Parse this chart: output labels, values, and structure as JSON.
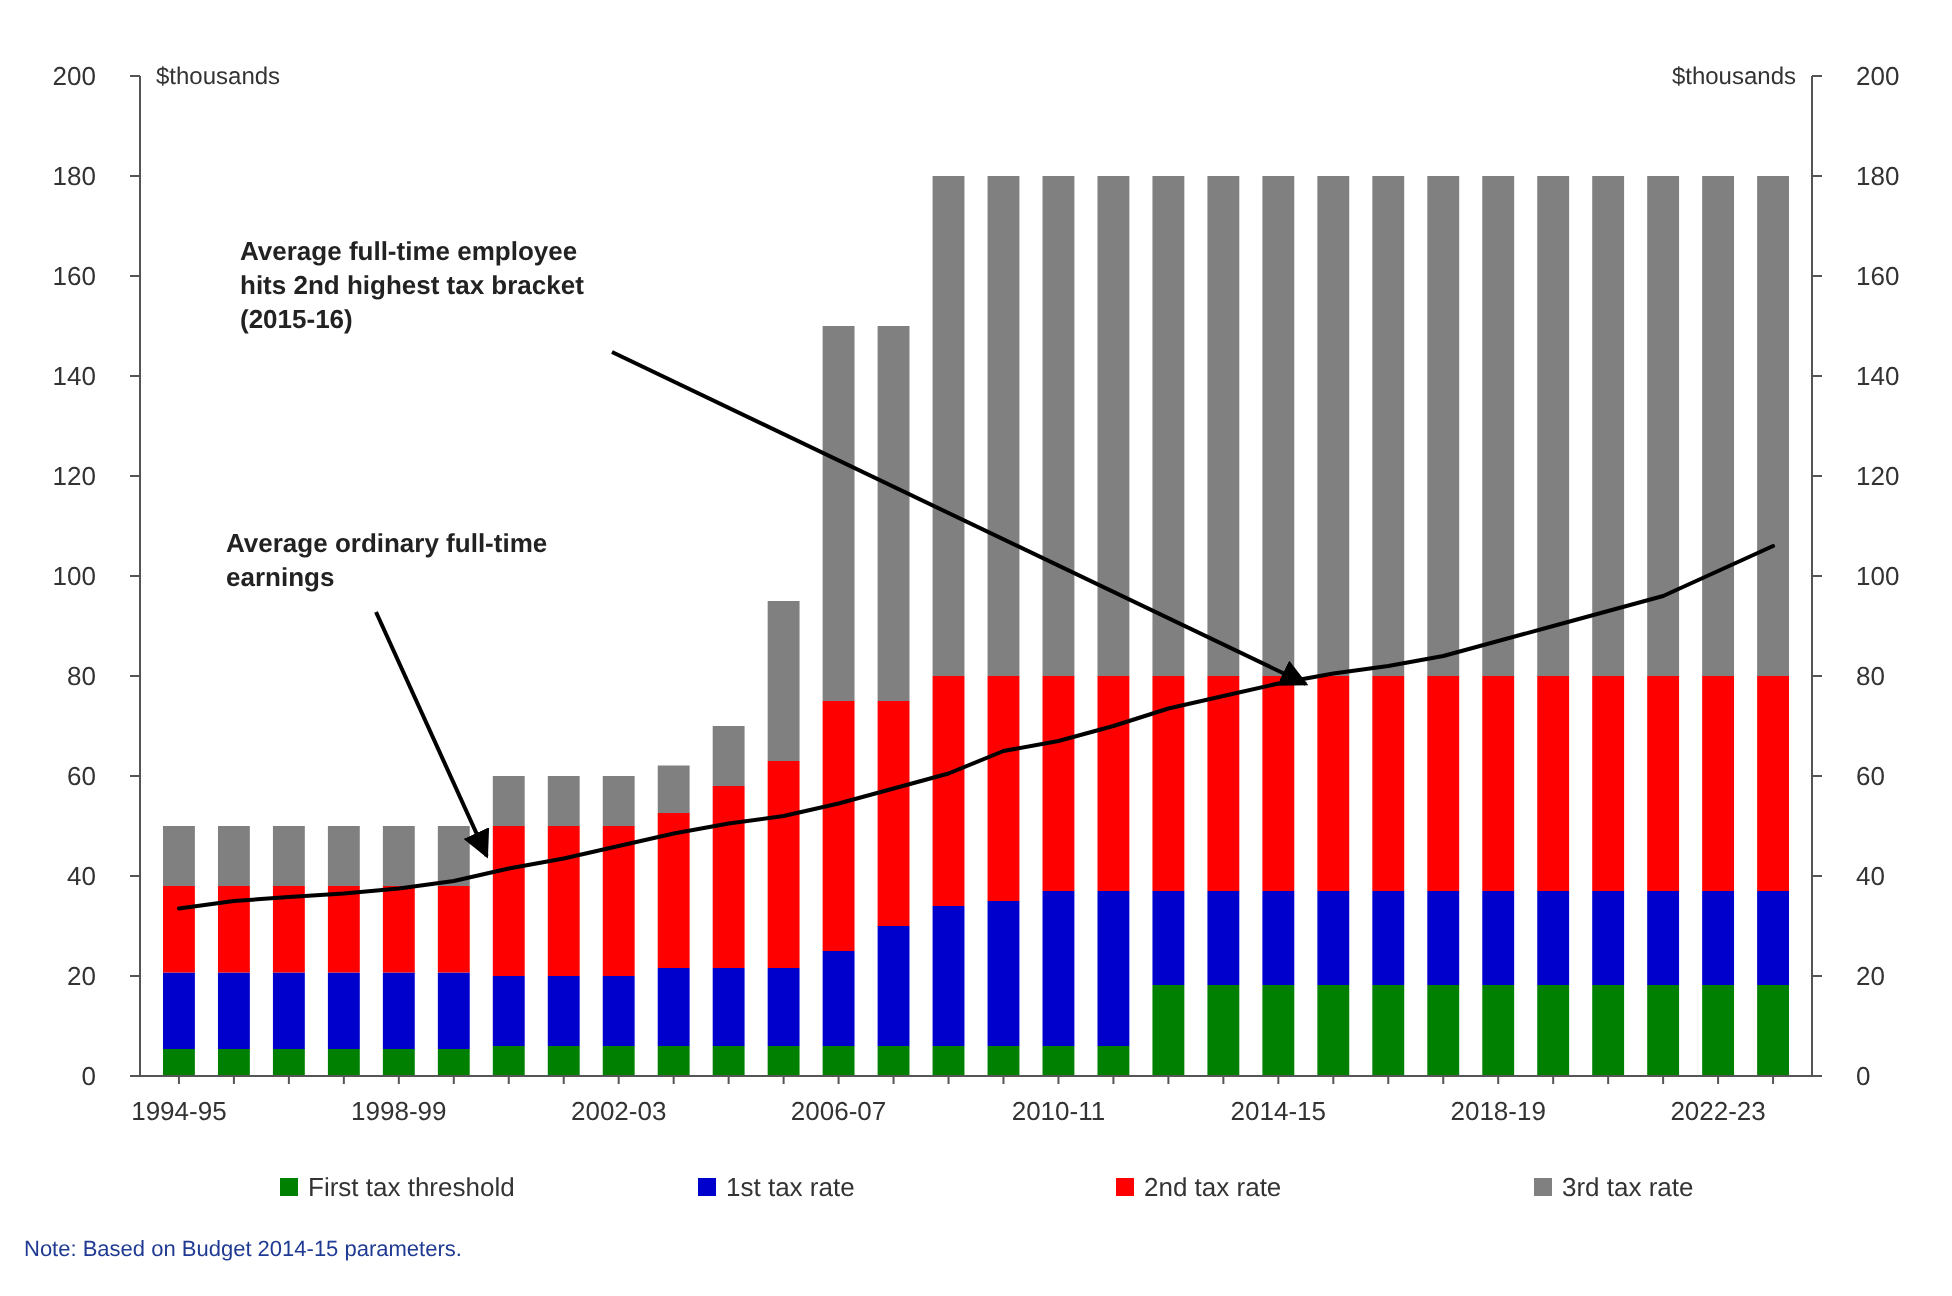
{
  "chart_data": {
    "type": "bar",
    "stacked": true,
    "categories": [
      "1994-95",
      null,
      null,
      null,
      "1998-99",
      null,
      null,
      null,
      "2002-03",
      null,
      null,
      null,
      "2006-07",
      null,
      null,
      null,
      "2010-11",
      null,
      null,
      null,
      "2014-15",
      null,
      null,
      null,
      "2018-19",
      null,
      null,
      null,
      "2022-23",
      null
    ],
    "series": [
      {
        "name": "First tax threshold",
        "color": "#008000",
        "values": [
          5.4,
          5.4,
          5.4,
          5.4,
          5.4,
          5.4,
          6,
          6,
          6,
          6,
          6,
          6,
          6,
          6,
          6,
          6,
          6,
          6,
          18.2,
          18.2,
          18.2,
          18.2,
          18.2,
          18.2,
          18.2,
          18.2,
          18.2,
          18.2,
          18.2,
          18.2
        ]
      },
      {
        "name": "1st tax rate",
        "color": "#0000cc",
        "values": [
          15.3,
          15.3,
          15.3,
          15.3,
          15.3,
          15.3,
          14,
          14,
          14,
          15.6,
          15.6,
          15.6,
          19,
          24,
          28,
          29,
          31,
          31,
          18.8,
          18.8,
          18.8,
          18.8,
          18.8,
          18.8,
          18.8,
          18.8,
          18.8,
          18.8,
          18.8,
          18.8
        ]
      },
      {
        "name": "2nd tax rate",
        "color": "#ff0000",
        "values": [
          17.3,
          17.3,
          17.3,
          17.3,
          17.3,
          17.3,
          30,
          30,
          30,
          31,
          36.4,
          41.4,
          50,
          45,
          46,
          45,
          43,
          43,
          43,
          43,
          43,
          43,
          43,
          43,
          43,
          43,
          43,
          43,
          43,
          43
        ]
      },
      {
        "name": "3rd tax rate",
        "color": "#808080",
        "values": [
          12,
          12,
          12,
          12,
          12,
          12,
          10,
          10,
          10,
          9.5,
          12,
          32,
          75,
          75,
          100,
          100,
          100,
          100,
          100,
          100,
          100,
          100,
          100,
          100,
          100,
          100,
          100,
          100,
          100,
          100
        ]
      },
      {
        "type": "line",
        "color": "#000000",
        "values": [
          33.5,
          35,
          35.8,
          36.5,
          37.5,
          39,
          41.5,
          43.5,
          46,
          48.5,
          50.5,
          52,
          54.5,
          57.5,
          60.5,
          65,
          67,
          70,
          73.5,
          76,
          78.5,
          80.5,
          82,
          84,
          87,
          90,
          93,
          96,
          101,
          106
        ]
      }
    ],
    "ylim": [
      0,
      200
    ],
    "yticks": [
      0,
      20,
      40,
      60,
      80,
      100,
      120,
      140,
      160,
      180,
      200
    ],
    "y2lim": [
      0,
      200
    ],
    "y2ticks": [
      0,
      20,
      40,
      60,
      80,
      100,
      120,
      140,
      160,
      180,
      200
    ],
    "ylabel": "$thousands",
    "y2label": "$thousands",
    "legend": "bottom",
    "annotations": [
      "Average full-time employee hits 2nd highest tax bracket (2015-16)",
      "Average ordinary full-time earnings",
      "Note: Based on Budget 2014-15 parameters."
    ]
  }
}
